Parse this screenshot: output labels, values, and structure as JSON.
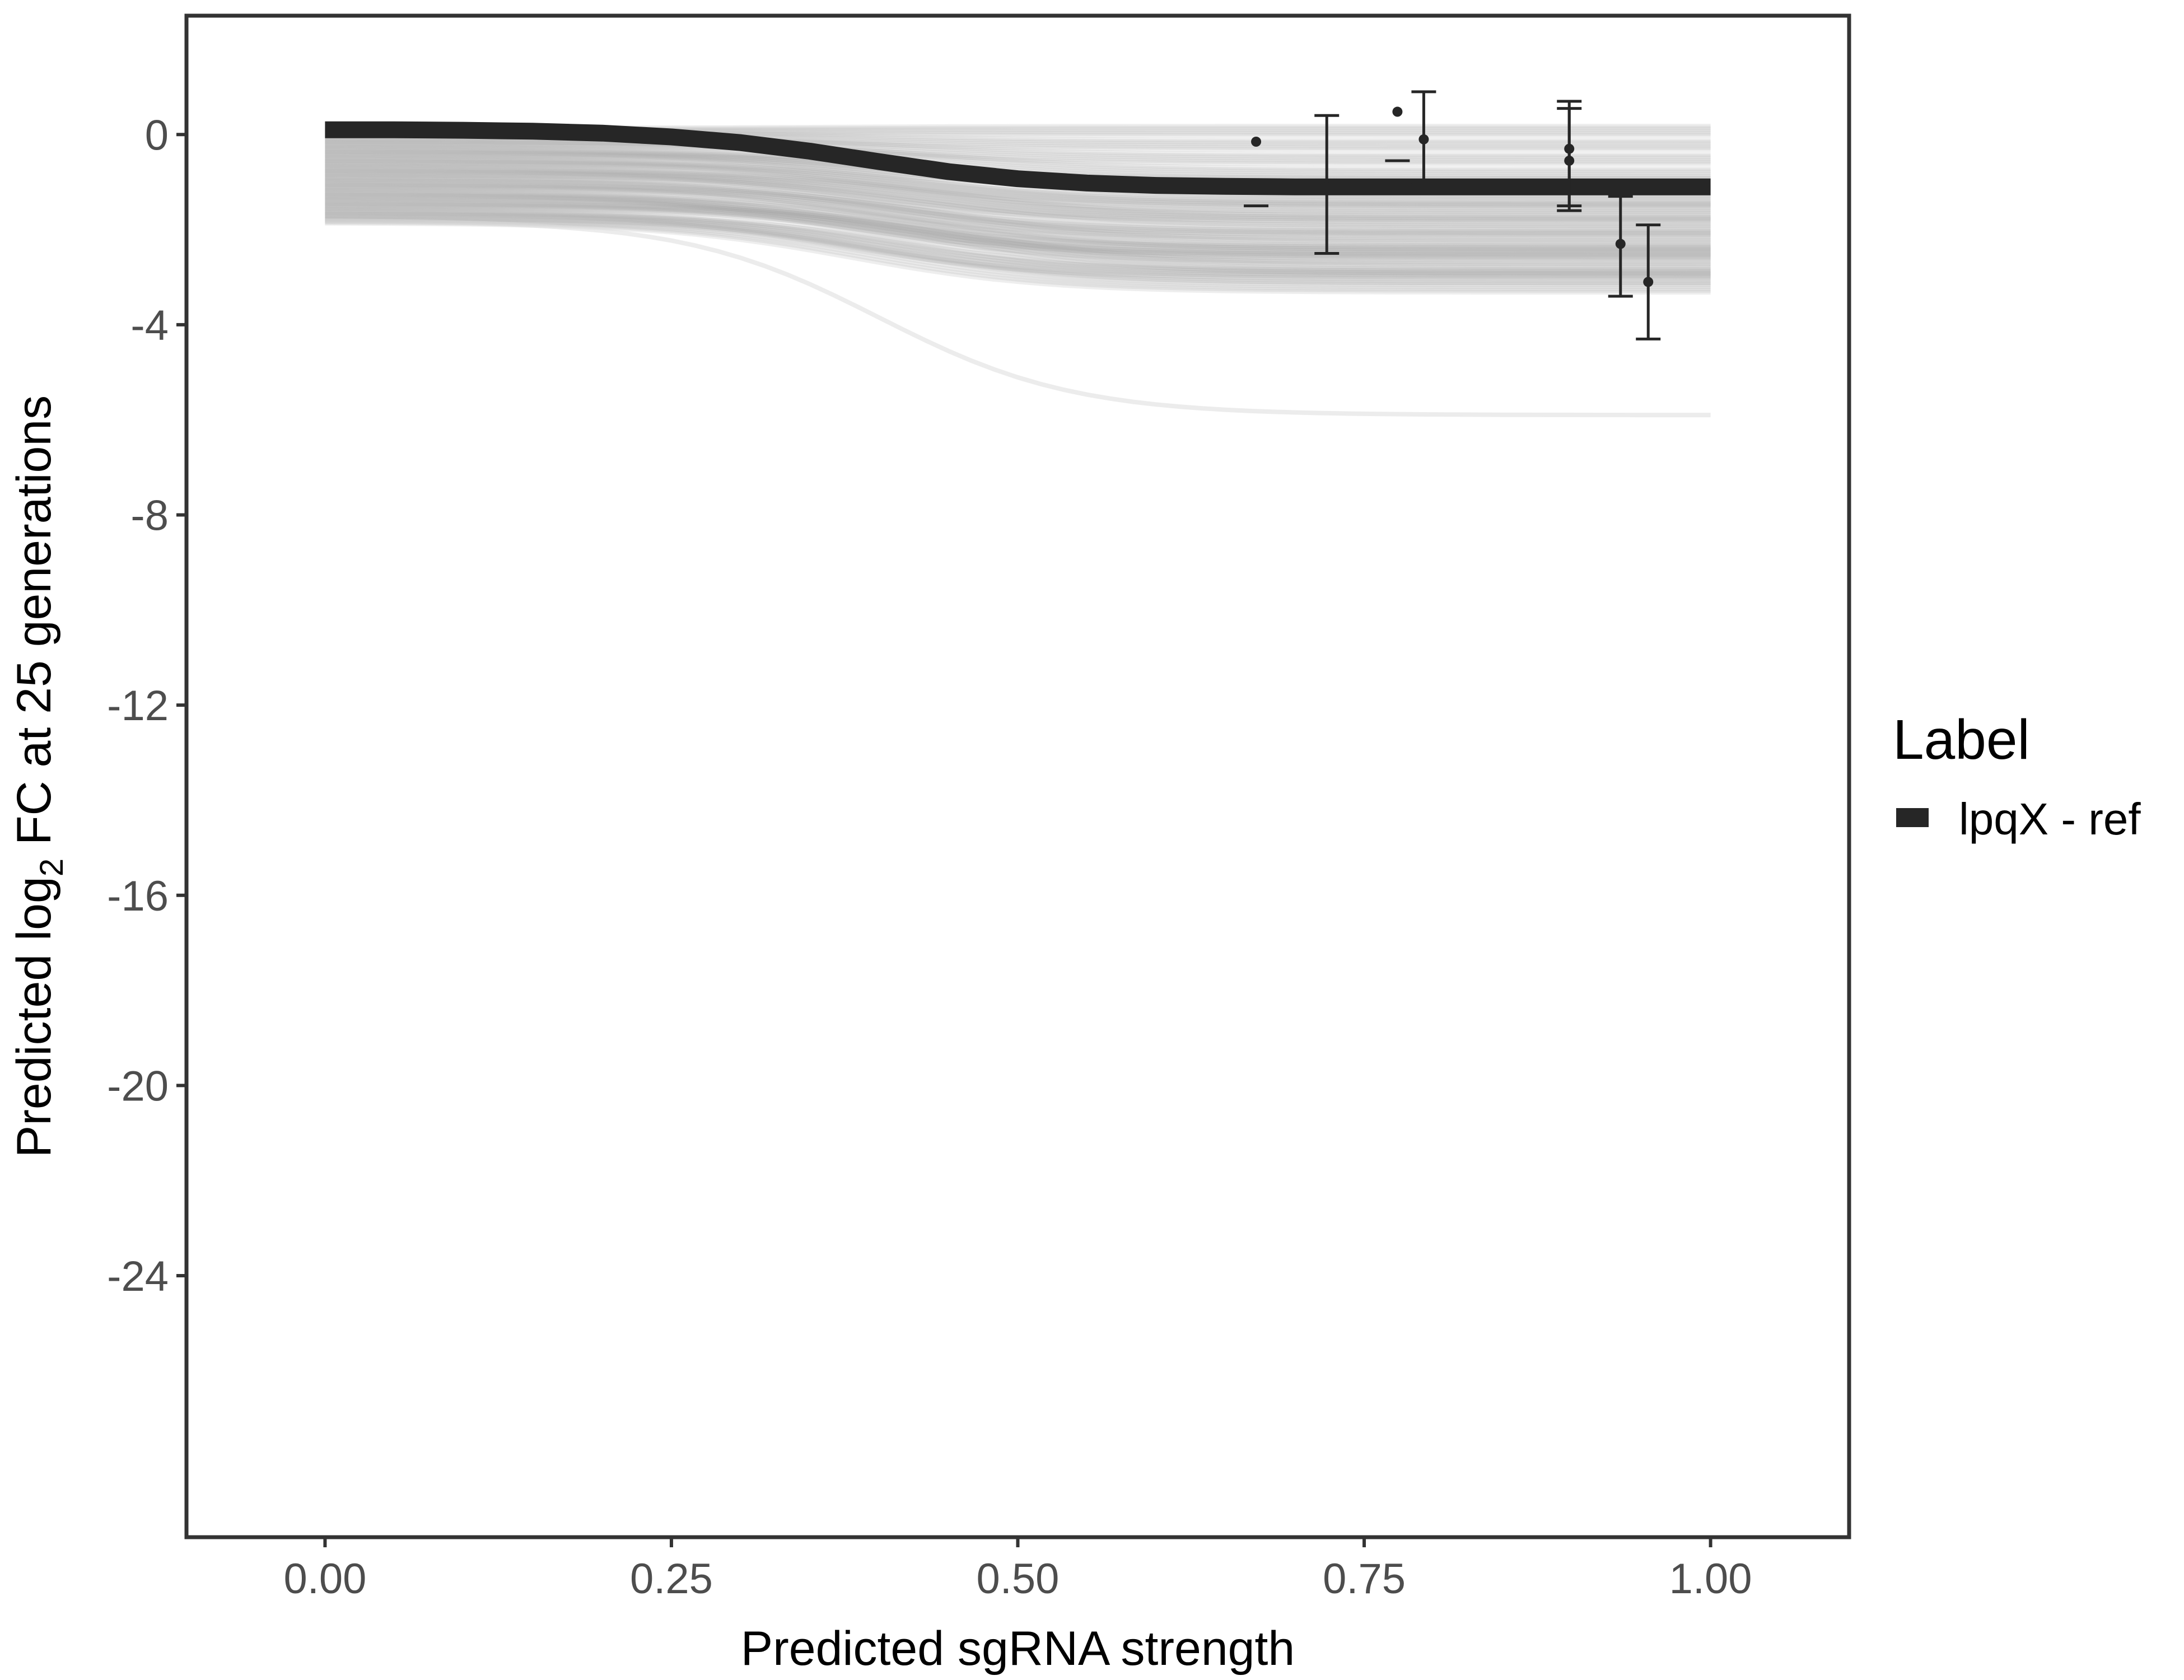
{
  "chart_data": {
    "type": "line",
    "title": "",
    "xlabel": "Predicted sgRNA strength",
    "ylabel_parts": {
      "before": "Predicted  log",
      "subscript": "2",
      "after": " FC at 25 generations"
    },
    "xlim": [
      -0.1,
      1.1
    ],
    "ylim": [
      -29.5,
      2.5
    ],
    "x_ticks": [
      0,
      0.25,
      0.5,
      0.75,
      1
    ],
    "x_tick_labels": [
      "0.00",
      "0.25",
      "0.50",
      "0.75",
      "1.00"
    ],
    "y_ticks": [
      0,
      -4,
      -8,
      -12,
      -16,
      -20,
      -24
    ],
    "y_tick_labels": [
      "0",
      "-4",
      "-8",
      "-12",
      "-16",
      "-20",
      "-24"
    ],
    "grid": false,
    "legend": {
      "title": "Label",
      "placement": "right",
      "entries": [
        {
          "label": "lpqX - ref",
          "color": "#262626"
        }
      ]
    },
    "main_curve": {
      "name": "lpqX - ref",
      "color": "#262626",
      "x": [
        0,
        0.05,
        0.1,
        0.15,
        0.2,
        0.25,
        0.3,
        0.35,
        0.4,
        0.45,
        0.5,
        0.55,
        0.6,
        0.65,
        0.7,
        0.75,
        0.8,
        0.85,
        0.9,
        0.95,
        1
      ],
      "y": [
        0.1,
        0.1,
        0.09,
        0.07,
        0.03,
        -0.05,
        -0.17,
        -0.35,
        -0.57,
        -0.78,
        -0.93,
        -1.02,
        -1.07,
        -1.09,
        -1.1,
        -1.1,
        -1.1,
        -1.1,
        -1.1,
        -1.1,
        -1.1
      ]
    },
    "posterior_draws": {
      "color": "#9e9e9e",
      "start_y": [
        0.1,
        0,
        -0.1,
        -0.2,
        -0.3,
        -0.4,
        -0.5,
        -0.6,
        -0.7,
        -0.8,
        -0.9,
        -1.0,
        -1.1,
        -1.2,
        -1.3,
        -1.4,
        -1.5,
        -1.6,
        -1.7,
        -1.8
      ],
      "end_y": [
        0.1,
        -0.2,
        -0.5,
        -0.8,
        -1.0,
        -1.2,
        -1.4,
        -1.5,
        -1.7,
        -1.8,
        -2.0,
        -2.1,
        -2.3,
        -2.4,
        -2.5,
        -2.6,
        -2.8,
        -2.9,
        -3.0,
        -3.2
      ],
      "midpoints": [
        0.35,
        0.38,
        0.4,
        0.42,
        0.36,
        0.44,
        0.39,
        0.41,
        0.37,
        0.43,
        0.4,
        0.38,
        0.42,
        0.36,
        0.41,
        0.39,
        0.44,
        0.37,
        0.4,
        0.38
      ],
      "outlier": {
        "start_y": -1.8,
        "end_y": -5.9,
        "midpoint": 0.4
      }
    },
    "observations": [
      {
        "x": 0.672,
        "y": -0.15,
        "ymin": -1.5,
        "ymax": null
      },
      {
        "x": 0.723,
        "y": -1.1,
        "ymin": -2.5,
        "ymax": 0.4
      },
      {
        "x": 0.774,
        "y": 0.48,
        "ymin": -0.55,
        "ymax": null
      },
      {
        "x": 0.793,
        "y": -0.1,
        "ymin": -1.0,
        "ymax": 0.9
      },
      {
        "x": 0.898,
        "y": -0.3,
        "ymin": -1.5,
        "ymax": 0.7
      },
      {
        "x": 0.898,
        "y": -0.55,
        "ymin": -1.6,
        "ymax": 0.55
      },
      {
        "x": 0.935,
        "y": -2.3,
        "ymin": -3.4,
        "ymax": -1.3
      },
      {
        "x": 0.955,
        "y": -3.1,
        "ymin": -4.3,
        "ymax": -1.9
      }
    ]
  }
}
